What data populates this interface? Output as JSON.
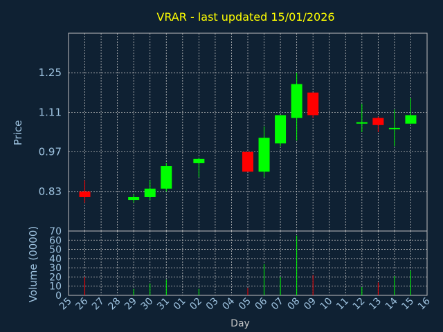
{
  "chart_data": {
    "type": "candlestick",
    "title": "VRAR - last updated 15/01/2026",
    "ylabel": "Price",
    "volume_label": "Volume (0000)",
    "xlabel": "Day",
    "price_ylim": [
      0.69,
      1.39
    ],
    "price_ticks": [
      "0.83",
      "0.97",
      "1.11",
      "1.25"
    ],
    "volume_ylim": [
      0,
      70
    ],
    "volume_ticks": [
      "0",
      "10",
      "20",
      "30",
      "40",
      "50",
      "60",
      "70"
    ],
    "x_ticks": [
      "25",
      "26",
      "27",
      "28",
      "29",
      "30",
      "31",
      "01",
      "02",
      "03",
      "04",
      "05",
      "06",
      "07",
      "08",
      "09",
      "10",
      "11",
      "12",
      "13",
      "14",
      "15",
      "16"
    ],
    "candles": [
      {
        "day": "26",
        "open": 0.83,
        "close": 0.81,
        "high": 0.87,
        "low": 0.79,
        "volume": 20
      },
      {
        "day": "29",
        "open": 0.8,
        "close": 0.81,
        "high": 0.82,
        "low": 0.79,
        "volume": 7
      },
      {
        "day": "30",
        "open": 0.81,
        "close": 0.84,
        "high": 0.87,
        "low": 0.8,
        "volume": 13
      },
      {
        "day": "31",
        "open": 0.84,
        "close": 0.92,
        "high": 0.93,
        "low": 0.83,
        "volume": 17
      },
      {
        "day": "02",
        "open": 0.93,
        "close": 0.945,
        "high": 0.95,
        "low": 0.88,
        "volume": 7
      },
      {
        "day": "05",
        "open": 0.97,
        "close": 0.9,
        "high": 0.97,
        "low": 0.9,
        "volume": 8
      },
      {
        "day": "06",
        "open": 0.9,
        "close": 1.02,
        "high": 1.06,
        "low": 0.88,
        "volume": 34
      },
      {
        "day": "07",
        "open": 1.0,
        "close": 1.1,
        "high": 1.1,
        "low": 0.99,
        "volume": 20
      },
      {
        "day": "08",
        "open": 1.09,
        "close": 1.21,
        "high": 1.25,
        "low": 1.01,
        "volume": 65
      },
      {
        "day": "09",
        "open": 1.18,
        "close": 1.1,
        "high": 1.18,
        "low": 1.09,
        "volume": 22
      },
      {
        "day": "12",
        "open": 1.07,
        "close": 1.075,
        "high": 1.14,
        "low": 1.04,
        "volume": 9
      },
      {
        "day": "13",
        "open": 1.09,
        "close": 1.065,
        "high": 1.095,
        "low": 1.04,
        "volume": 14
      },
      {
        "day": "14",
        "open": 1.05,
        "close": 1.055,
        "high": 1.12,
        "low": 0.99,
        "volume": 21
      },
      {
        "day": "15",
        "open": 1.07,
        "close": 1.1,
        "high": 1.16,
        "low": 1.07,
        "volume": 27
      }
    ],
    "colors": {
      "background": "#0f2133",
      "up": "#00ff00",
      "down": "#ff0000",
      "grid": "#c0c0c0",
      "title": "#ffff00",
      "axis_text": "#9ec3e0"
    }
  }
}
